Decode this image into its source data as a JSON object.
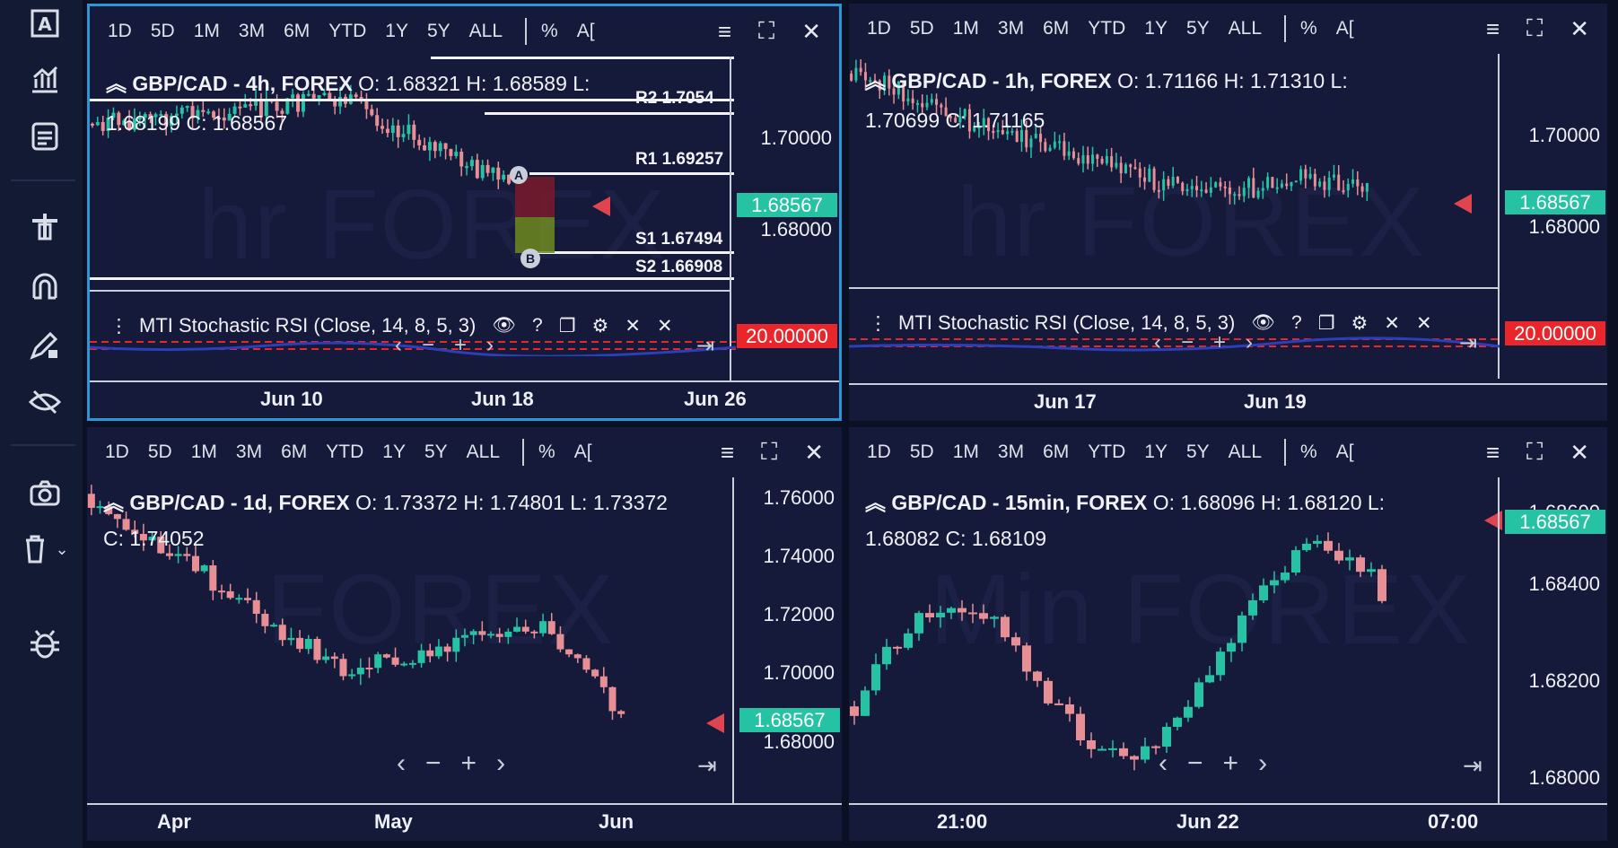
{
  "timeframes": [
    "1D",
    "5D",
    "1M",
    "3M",
    "6M",
    "YTD",
    "1Y",
    "5Y",
    "ALL"
  ],
  "percent_label": "%",
  "auto_label": "A[",
  "indicator_label": "MTI Stochastic RSI (Close, 14, 8, 5, 3)",
  "indicator_level": "20.00000",
  "last_price": "1.68567",
  "colors": {
    "up": "#26c2a4",
    "down": "#e88f96",
    "accent": "#2d97d6",
    "bg": "#15193a"
  },
  "icons": [
    "text-tool-icon",
    "chart-tool-icon",
    "calendar-tool-icon",
    "cross-line-icon",
    "magnet-icon",
    "lock-pen-icon",
    "eye-hide-icon",
    "camera-icon",
    "trash-icon",
    "bug-icon"
  ],
  "panels": {
    "tl": {
      "watermark": "hr FOREX",
      "title": "GBP/CAD - 4h, FOREX",
      "ohlc_line1": "O: 1.68321 H: 1.68589 L:",
      "ohlc_line2": "1.68199 C: 1.68567",
      "price_labels": [
        "1.70000",
        "1.68000"
      ],
      "pivots": {
        "r2": "R2 1.7054",
        "r1": "R1 1.69257",
        "s1": "S1 1.67494",
        "s2": "S2 1.66908"
      },
      "markers": {
        "a": "A",
        "b": "B"
      },
      "time_labels": [
        "Jun 10",
        "Jun 18",
        "Jun 26"
      ]
    },
    "tr": {
      "watermark": "hr FOREX",
      "title": "GBP/CAD - 1h, FOREX",
      "ohlc_line1": "O: 1.71166 H: 1.71310 L:",
      "ohlc_line2": "1.70699 C: 1.71165",
      "price_labels": [
        "1.70000",
        "1.68000"
      ],
      "time_labels": [
        "Jun 17",
        "Jun 19"
      ]
    },
    "bl": {
      "watermark": "FOREX",
      "title": "GBP/CAD - 1d, FOREX",
      "ohlc_line1": "O: 1.73372 H: 1.74801 L: 1.73372",
      "ohlc_line2": "C: 1.74052",
      "price_labels": [
        "1.76000",
        "1.74000",
        "1.72000",
        "1.70000",
        "1.68000"
      ],
      "time_labels": [
        "Apr",
        "May",
        "Jun"
      ]
    },
    "br": {
      "watermark": "Min FOREX",
      "title": "GBP/CAD - 15min, FOREX",
      "ohlc_line1": "O: 1.68096 H: 1.68120 L:",
      "ohlc_line2": "1.68082 C: 1.68109",
      "price_labels": [
        "1.68600",
        "1.68400",
        "1.68200",
        "1.68000"
      ],
      "time_labels": [
        "21:00",
        "Jun 22",
        "07:00"
      ]
    }
  }
}
